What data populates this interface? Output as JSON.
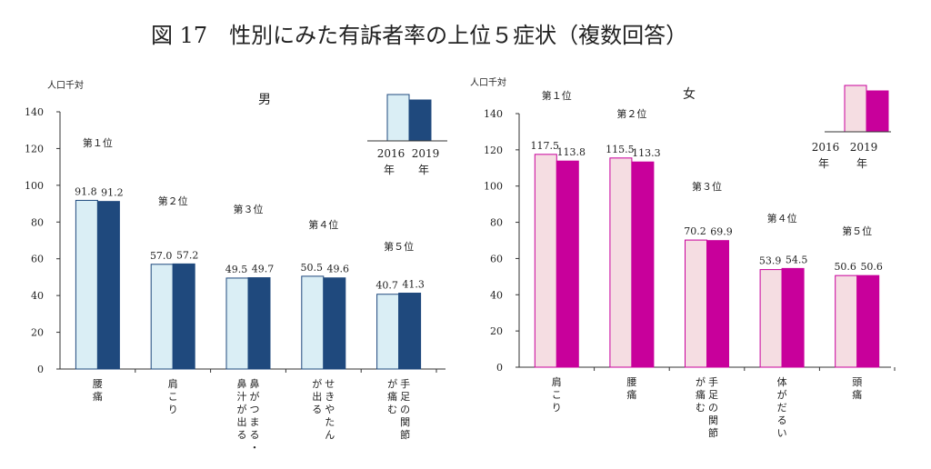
{
  "figure_title": "図 17　性別にみた有訴者率の上位５症状（複数回答）",
  "y_unit_label": "人口千対",
  "legend_years": [
    "2016",
    "2019"
  ],
  "legend_suffix": "年",
  "colors": {
    "male_2016": "#daeef5",
    "male_2019": "#1f497d",
    "female_2016": "#f5dde2",
    "female_2019": "#c8009b",
    "male_edge": "#1f497d",
    "female_edge": "#c8009b"
  },
  "chart_data": [
    {
      "type": "bar",
      "panel_title": "男",
      "ylabel": "人口千対",
      "ylim": [
        0,
        140
      ],
      "yticks": [
        0,
        20,
        40,
        60,
        80,
        100,
        120,
        140
      ],
      "series_years": [
        "2016",
        "2019"
      ],
      "categories": [
        {
          "label": "腰痛",
          "rank": "第１位",
          "values": [
            91.8,
            91.2
          ]
        },
        {
          "label": "肩こり",
          "rank": "第２位",
          "values": [
            57.0,
            57.2
          ]
        },
        {
          "label": "鼻がつまる・鼻汁が出る",
          "rank": "第３位",
          "values": [
            49.5,
            49.7
          ]
        },
        {
          "label": "せきやたんが出る",
          "rank": "第４位",
          "values": [
            50.5,
            49.6
          ]
        },
        {
          "label": "手足の関節が痛む",
          "rank": "第５位",
          "values": [
            40.7,
            41.3
          ]
        }
      ]
    },
    {
      "type": "bar",
      "panel_title": "女",
      "ylabel": "人口千対",
      "ylim": [
        0,
        140
      ],
      "yticks": [
        0,
        20,
        40,
        60,
        80,
        100,
        120,
        140
      ],
      "series_years": [
        "2016",
        "2019"
      ],
      "categories": [
        {
          "label": "肩こり",
          "rank": "第１位",
          "values": [
            117.5,
            113.8
          ]
        },
        {
          "label": "腰痛",
          "rank": "第２位",
          "values": [
            115.5,
            113.3
          ]
        },
        {
          "label": "手足の関節が痛む",
          "rank": "第３位",
          "values": [
            70.2,
            69.9
          ]
        },
        {
          "label": "体がだるい",
          "rank": "第４位",
          "values": [
            53.9,
            54.5
          ]
        },
        {
          "label": "頭痛",
          "rank": "第５位",
          "values": [
            50.6,
            50.6
          ]
        }
      ]
    }
  ]
}
